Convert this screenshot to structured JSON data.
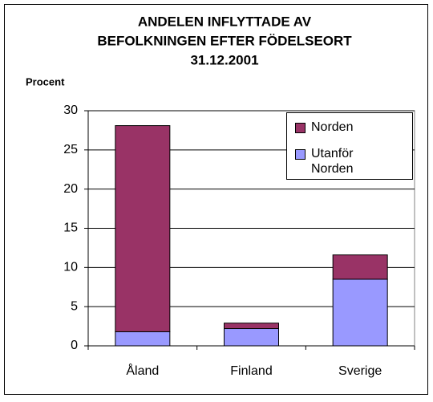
{
  "chart_data": {
    "type": "stacked_bar",
    "title": [
      "ANDELEN INFLYTTADE AV",
      "BEFOLKNINGEN EFTER FÖDELSEORT",
      "31.12.2001"
    ],
    "y_label": "Procent",
    "categories": [
      "Åland",
      "Finland",
      "Sverige"
    ],
    "series": [
      {
        "name": "Utanför Norden",
        "color": "#9999ff",
        "values": [
          1.8,
          2.2,
          8.5
        ]
      },
      {
        "name": "Norden",
        "color": "#993366",
        "values": [
          26.3,
          0.7,
          3.1
        ]
      }
    ],
    "ylim": [
      0,
      30
    ],
    "yticks": [
      0,
      5,
      10,
      15,
      20,
      25,
      30
    ],
    "grid": true
  }
}
